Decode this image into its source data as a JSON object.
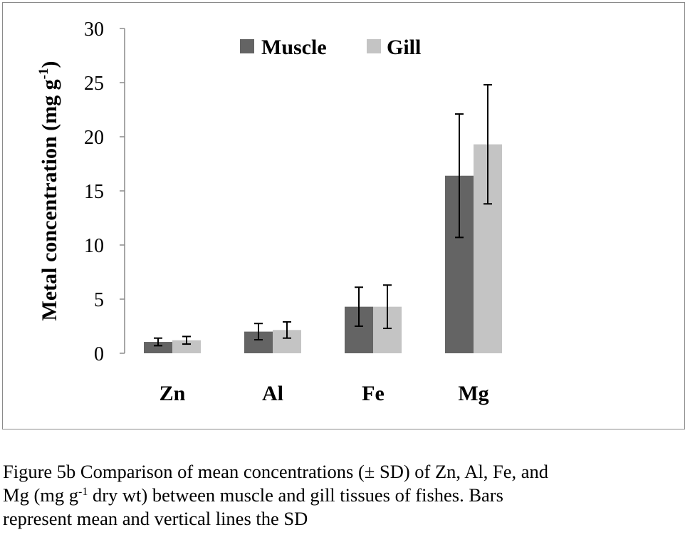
{
  "chart_data": {
    "type": "bar",
    "categories": [
      "Zn",
      "Al",
      "Fe",
      "Mg"
    ],
    "series": [
      {
        "name": "Muscle",
        "color": "#646464",
        "values": [
          1.05,
          2.0,
          4.3,
          16.4
        ],
        "sd": [
          0.35,
          0.75,
          1.8,
          5.7
        ]
      },
      {
        "name": "Gill",
        "color": "#c4c4c4",
        "values": [
          1.2,
          2.15,
          4.3,
          19.3
        ],
        "sd": [
          0.35,
          0.75,
          2.0,
          5.5
        ]
      }
    ],
    "ylabel_main": "Metal concentration (mg g",
    "ylabel_sup": "-1",
    "ylabel_end": ")",
    "ylim": [
      0,
      30
    ],
    "yticks": [
      "0",
      "5",
      "10",
      "15",
      "20",
      "25",
      "30"
    ],
    "legend": "top-center",
    "grid": false
  },
  "caption": {
    "line1": "Figure 5b Comparison of mean concentrations (± SD) of Zn, Al, Fe, and",
    "line2_a": "Mg (mg g",
    "line2_sup": "-1",
    "line2_b": " dry wt) between muscle and gill tissues of fishes. Bars",
    "line3": "represent mean and vertical lines the SD"
  }
}
